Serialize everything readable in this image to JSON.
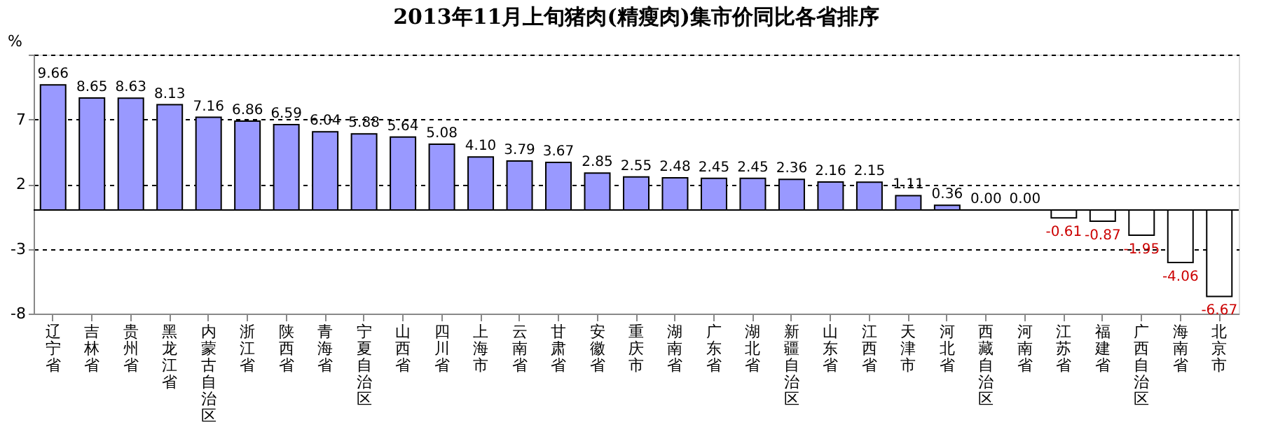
{
  "chart_data": {
    "type": "bar",
    "title": "2013年11月上旬猪肉(精瘦肉)集市价同比各省排序",
    "ylabel": "%",
    "categories": [
      "辽宁省",
      "吉林省",
      "贵州省",
      "黑龙江省",
      "内蒙古自治区",
      "浙江省",
      "陕西省",
      "青海省",
      "宁夏自治区",
      "山西省",
      "四川省",
      "上海市",
      "云南省",
      "甘肃省",
      "安徽省",
      "重庆市",
      "湖南省",
      "广东省",
      "湖北省",
      "新疆自治区",
      "山东省",
      "江西省",
      "天津市",
      "河北省",
      "西藏自治区",
      "河南省",
      "江苏省",
      "福建省",
      "广西自治区",
      "海南省",
      "北京市"
    ],
    "values": [
      9.66,
      8.65,
      8.63,
      8.13,
      7.16,
      6.86,
      6.59,
      6.04,
      5.88,
      5.64,
      5.08,
      4.1,
      3.79,
      3.67,
      2.85,
      2.55,
      2.48,
      2.45,
      2.45,
      2.36,
      2.16,
      2.15,
      1.11,
      0.36,
      0.0,
      0.0,
      -0.61,
      -0.87,
      -1.95,
      -4.06,
      -6.67
    ],
    "value_labels": [
      "9.66",
      "8.65",
      "8.63",
      "8.13",
      "7.16",
      "6.86",
      "6.59",
      "6.04",
      "5.88",
      "5.64",
      "5.08",
      "4.10",
      "3.79",
      "3.67",
      "2.85",
      "2.55",
      "2.48",
      "2.45",
      "2.45",
      "2.36",
      "2.16",
      "2.15",
      "1.11",
      "0.36",
      "0.00",
      "0.00",
      "-0.61",
      "-0.87",
      "-1.95",
      "-4.06",
      "-6.67"
    ],
    "colors": [
      "#9999ff",
      "#9999ff",
      "#9999ff",
      "#9999ff",
      "#9999ff",
      "#9999ff",
      "#9999ff",
      "#9999ff",
      "#9999ff",
      "#9999ff",
      "#9999ff",
      "#9999ff",
      "#9999ff",
      "#9999ff",
      "#9999ff",
      "#9999ff",
      "#9999ff",
      "#9999ff",
      "#9999ff",
      "#9999ff",
      "#9999ff",
      "#9999ff",
      "#9999ff",
      "#9999ff",
      "#9999ff",
      "#9999ff",
      "#ffffff",
      "#ffffff",
      "#ffffff",
      "#ffffff",
      "#ffffff"
    ],
    "ylim": [
      -8,
      12
    ],
    "yticks": [
      -8,
      -3,
      2,
      7,
      {
        "value": 12,
        "label": null
      }
    ],
    "grid": "y"
  }
}
